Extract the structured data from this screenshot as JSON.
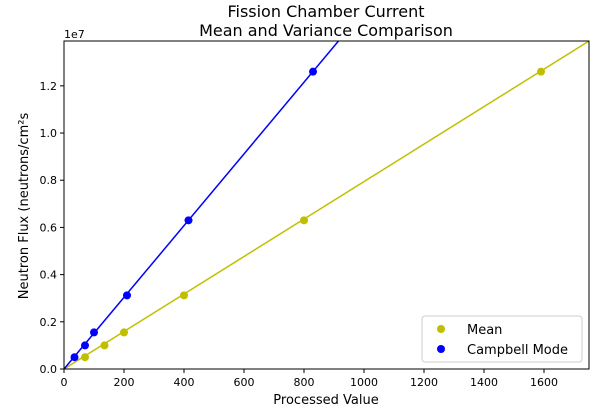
{
  "chart_data": {
    "type": "scatter",
    "title_line1": "Fission Chamber Current",
    "title_line2": "Mean and Variance Comparison",
    "xlabel": "Processed Value",
    "ylabel": "Neutron Flux (neutrons/cm²s",
    "y_offset_label": "1e7",
    "xlim": [
      0,
      1750
    ],
    "ylim": [
      0,
      13900000.0
    ],
    "x_ticks": [
      0,
      200,
      400,
      600,
      800,
      1000,
      1200,
      1400,
      1600
    ],
    "x_tick_labels": [
      "0",
      "200",
      "400",
      "600",
      "800",
      "1000",
      "1200",
      "1400",
      "1600"
    ],
    "y_ticks": [
      0,
      2000000,
      4000000,
      6000000,
      8000000,
      10000000,
      12000000
    ],
    "y_tick_labels": [
      "0.0",
      "0.2",
      "0.4",
      "0.6",
      "0.8",
      "1.0",
      "1.2"
    ],
    "grid": false,
    "legend_position": "lower-right",
    "series": [
      {
        "name": "Mean",
        "color": "#bfbf00",
        "x": [
          70,
          135,
          200,
          400,
          800,
          1590
        ],
        "y": [
          500000,
          1000000,
          1550000,
          3120000,
          6300000,
          12600000
        ],
        "fit_line": {
          "x": [
            0,
            1750
          ],
          "y": [
            0,
            13900000
          ]
        }
      },
      {
        "name": "Campbell Mode",
        "color": "#0000ff",
        "x": [
          35,
          70,
          100,
          210,
          415,
          830
        ],
        "y": [
          500000,
          1000000,
          1550000,
          3120000,
          6300000,
          12600000
        ],
        "fit_line": {
          "x": [
            0,
            915
          ],
          "y": [
            0,
            13900000
          ]
        }
      }
    ]
  }
}
